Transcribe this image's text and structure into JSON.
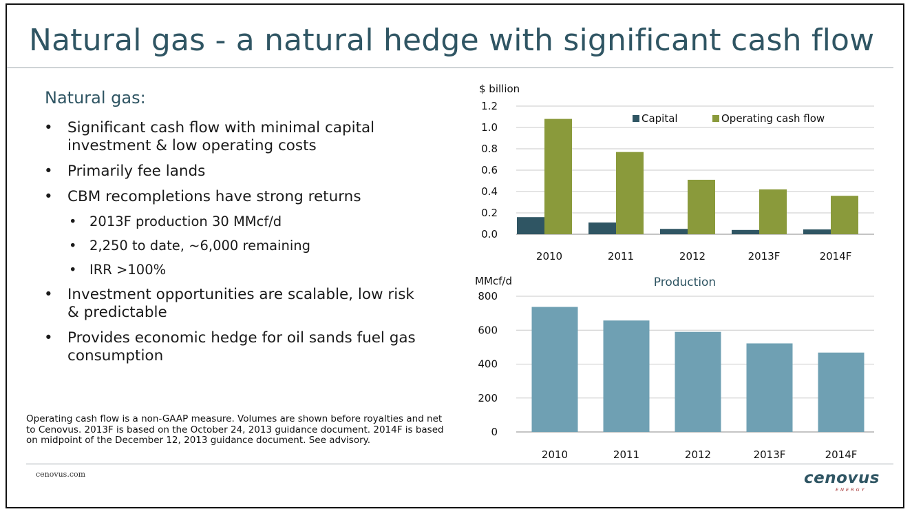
{
  "slide": {
    "title": "Natural gas - a natural hedge with significant cash flow",
    "subhead": "Natural gas:",
    "bullets": [
      "Significant cash flow with minimal capital investment & low operating costs",
      "Primarily fee lands",
      "CBM recompletions have strong returns",
      "2013F production 30 MMcf/d",
      "2,250 to date, ~6,000 remaining",
      "IRR >100%",
      "Investment opportunities are scalable, low risk & predictable",
      "Provides economic hedge for oil sands fuel gas consumption"
    ],
    "footnote": "Operating cash flow is a non-GAAP measure. Volumes are shown before royalties and net to Cenovus. 2013F is based on the October 24, 2013 guidance document. 2014F is based on midpoint of the December 12, 2013 guidance document. See advisory.",
    "website": "cenovus.com",
    "logo": {
      "name": "cenovus",
      "tagline": "ENERGY"
    },
    "colors": {
      "title": "#2f5563",
      "capital": "#2f5563",
      "operating": "#8a9a3b",
      "production": "#6fa0b3"
    }
  },
  "chart_data": [
    {
      "type": "bar",
      "ylabel": "$ billion",
      "categories": [
        "2010",
        "2011",
        "2012",
        "2013F",
        "2014F"
      ],
      "ylim": [
        0,
        1.2
      ],
      "yticks": [
        "0.0",
        "0.2",
        "0.4",
        "0.6",
        "0.8",
        "1.0",
        "1.2"
      ],
      "legend": "top-right",
      "grid": true,
      "series": [
        {
          "name": "Capital",
          "values": [
            0.16,
            0.11,
            0.05,
            0.04,
            0.045
          ]
        },
        {
          "name": "Operating cash flow",
          "values": [
            1.08,
            0.77,
            0.51,
            0.42,
            0.36
          ]
        }
      ]
    },
    {
      "type": "bar",
      "title": "Production",
      "ylabel": "MMcf/d",
      "categories": [
        "2010",
        "2011",
        "2012",
        "2013F",
        "2014F"
      ],
      "ylim": [
        0,
        800
      ],
      "yticks": [
        "0",
        "200",
        "400",
        "600",
        "800"
      ],
      "grid": true,
      "series": [
        {
          "name": "",
          "values": [
            737,
            657,
            590,
            522,
            468
          ]
        }
      ]
    }
  ]
}
